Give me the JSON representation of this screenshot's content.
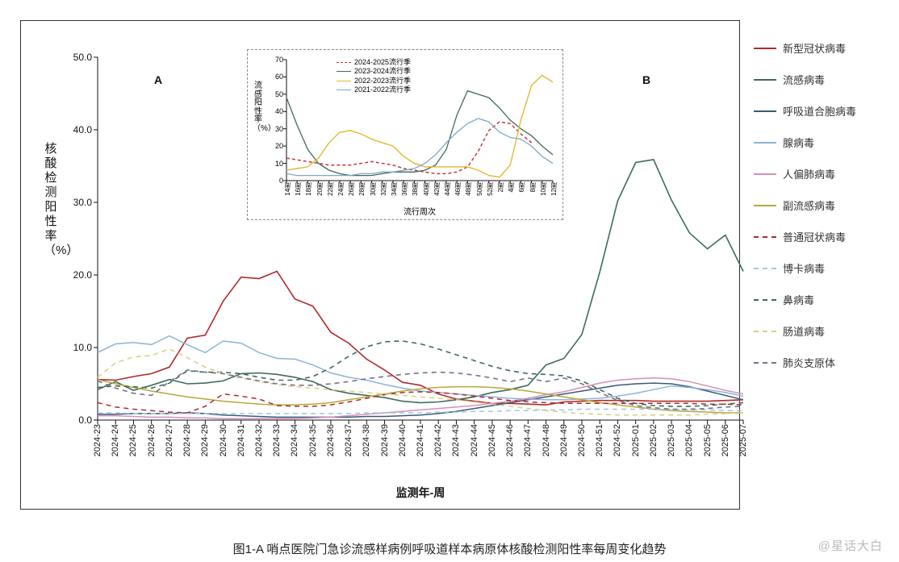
{
  "caption": "图1-A  哨点医院门急诊流感样病例呼吸道样本病原体核酸检测阳性率每周变化趋势",
  "watermark": "@星话大白",
  "markers": {
    "A": "A",
    "B": "B"
  },
  "chart": {
    "type": "line",
    "title": "",
    "ylabel": "核酸检测阳性率（%）",
    "xlabel": "监测年-周",
    "label_fontsize": 14,
    "tick_fontsize": 11,
    "background_color": "#ffffff",
    "axis_color": "#111111",
    "grid": false,
    "ylim": [
      0,
      50
    ],
    "ytick_step": 10,
    "ytick_labels": [
      "0.0",
      "10.0",
      "20.0",
      "30.0",
      "40.0",
      "50.0"
    ],
    "x_categories": [
      "2024-23",
      "2024-24",
      "2024-25",
      "2024-26",
      "2024-27",
      "2024-28",
      "2024-29",
      "2024-30",
      "2024-31",
      "2024-32",
      "2024-33",
      "2024-34",
      "2024-35",
      "2024-36",
      "2024-37",
      "2024-38",
      "2024-39",
      "2024-40",
      "2024-41",
      "2024-42",
      "2024-43",
      "2024-44",
      "2024-45",
      "2024-46",
      "2024-47",
      "2024-48",
      "2024-49",
      "2024-50",
      "2024-51",
      "2024-52",
      "2025-01",
      "2025-02",
      "2025-03",
      "2025-04",
      "2025-05",
      "2025-06",
      "2025-07"
    ],
    "series": [
      {
        "name": "新型冠状病毒",
        "color": "#b02a2a",
        "dash": "solid",
        "width": 1.6,
        "values": [
          5.6,
          5.5,
          6.0,
          6.4,
          7.3,
          11.3,
          11.7,
          16.4,
          19.7,
          19.5,
          20.5,
          16.7,
          15.7,
          12.1,
          10.6,
          8.4,
          6.9,
          5.2,
          4.8,
          3.6,
          2.9,
          2.6,
          2.3,
          2.3,
          2.2,
          2.1,
          2.5,
          2.6,
          2.7,
          2.7,
          2.7,
          2.6,
          2.6,
          2.6,
          2.6,
          2.7,
          2.8
        ]
      },
      {
        "name": "流感病毒",
        "color": "#3f6b5c",
        "dash": "solid",
        "width": 1.6,
        "values": [
          4.2,
          5.3,
          4.1,
          4.8,
          5.6,
          5.0,
          5.1,
          5.4,
          6.4,
          6.5,
          6.3,
          5.9,
          5.3,
          4.2,
          3.7,
          3.4,
          3.1,
          2.6,
          2.4,
          2.5,
          2.8,
          3.2,
          3.8,
          4.2,
          4.8,
          7.6,
          8.5,
          11.8,
          20.4,
          30.2,
          35.5,
          35.9,
          30.3,
          25.8,
          23.6,
          25.5,
          20.5
        ]
      },
      {
        "name": "呼吸道合胞病毒",
        "color": "#3a5a78",
        "dash": "solid",
        "width": 1.5,
        "values": [
          0.8,
          0.8,
          0.9,
          0.9,
          0.9,
          1.0,
          0.9,
          0.7,
          0.6,
          0.5,
          0.4,
          0.4,
          0.4,
          0.4,
          0.4,
          0.5,
          0.5,
          0.6,
          0.7,
          0.9,
          1.2,
          1.6,
          2.0,
          2.4,
          2.8,
          3.2,
          3.6,
          4.0,
          4.4,
          4.8,
          5.0,
          5.1,
          5.0,
          4.6,
          4.0,
          3.4,
          2.8
        ]
      },
      {
        "name": "腺病毒",
        "color": "#8bb4d9",
        "dash": "solid",
        "width": 1.5,
        "values": [
          9.3,
          10.5,
          10.7,
          10.4,
          11.6,
          10.4,
          9.3,
          10.9,
          10.6,
          9.3,
          8.5,
          8.4,
          7.6,
          6.5,
          5.9,
          5.5,
          4.9,
          4.4,
          4.0,
          3.8,
          3.6,
          3.4,
          3.2,
          3.0,
          2.9,
          2.8,
          2.8,
          2.9,
          3.0,
          3.3,
          3.7,
          4.2,
          4.7,
          4.5,
          4.2,
          3.8,
          3.3
        ]
      },
      {
        "name": "人偏肺病毒",
        "color": "#d490b8",
        "dash": "solid",
        "width": 1.5,
        "values": [
          0.6,
          0.6,
          0.5,
          0.4,
          0.4,
          0.3,
          0.3,
          0.2,
          0.2,
          0.2,
          0.2,
          0.2,
          0.3,
          0.4,
          0.6,
          0.8,
          1.0,
          1.2,
          1.4,
          1.6,
          1.8,
          2.0,
          2.3,
          2.6,
          3.0,
          3.5,
          3.9,
          4.5,
          5.1,
          5.5,
          5.7,
          5.8,
          5.7,
          5.3,
          4.7,
          4.1,
          3.6
        ]
      },
      {
        "name": "副流感病毒",
        "color": "#b5a83c",
        "dash": "solid",
        "width": 1.5,
        "values": [
          5.6,
          5.0,
          4.5,
          4.0,
          3.6,
          3.2,
          2.9,
          2.6,
          2.4,
          2.2,
          2.1,
          2.1,
          2.2,
          2.4,
          2.8,
          3.2,
          3.6,
          4.0,
          4.3,
          4.5,
          4.6,
          4.6,
          4.5,
          4.3,
          4.0,
          3.6,
          3.2,
          2.8,
          2.4,
          2.1,
          1.8,
          1.5,
          1.3,
          1.2,
          1.1,
          1.0,
          1.0
        ]
      },
      {
        "name": "普通冠状病毒",
        "color": "#b02a2a",
        "dash": "dashed",
        "width": 1.5,
        "values": [
          2.4,
          1.8,
          1.5,
          1.3,
          1.1,
          1.0,
          1.9,
          3.6,
          3.3,
          2.9,
          2.0,
          1.9,
          1.9,
          2.1,
          2.5,
          3.0,
          3.5,
          3.8,
          3.9,
          3.8,
          3.6,
          3.3,
          3.0,
          2.7,
          2.5,
          2.4,
          2.3,
          2.3,
          2.3,
          2.3,
          2.3,
          2.3,
          2.3,
          2.3,
          2.2,
          2.2,
          2.1
        ]
      },
      {
        "name": "博卡病毒",
        "color": "#9fc5e8",
        "dash": "dashed",
        "width": 1.5,
        "values": [
          1.0,
          1.0,
          0.9,
          0.9,
          0.9,
          0.9,
          0.9,
          0.9,
          0.9,
          0.9,
          0.9,
          0.9,
          0.9,
          0.9,
          0.9,
          1.0,
          1.0,
          1.0,
          1.0,
          1.1,
          1.1,
          1.2,
          1.2,
          1.3,
          1.3,
          1.4,
          1.4,
          1.5,
          1.5,
          1.5,
          1.5,
          1.5,
          1.5,
          1.4,
          1.4,
          1.3,
          1.3
        ]
      },
      {
        "name": "鼻病毒",
        "color": "#3f6b5c",
        "dash": "dashed",
        "width": 1.6,
        "values": [
          4.5,
          4.7,
          4.6,
          4.4,
          5.1,
          6.8,
          6.6,
          6.6,
          6.4,
          5.9,
          5.5,
          5.5,
          6.0,
          7.2,
          8.8,
          10.1,
          10.8,
          10.9,
          10.5,
          9.8,
          9.0,
          8.2,
          7.4,
          6.8,
          6.4,
          6.3,
          6.1,
          5.4,
          4.2,
          3.0,
          2.3,
          2.0,
          1.9,
          1.9,
          2.0,
          2.2,
          2.4
        ]
      },
      {
        "name": "肠道病毒",
        "color": "#d7cf84",
        "dash": "dashed",
        "width": 1.5,
        "values": [
          5.9,
          7.9,
          8.7,
          8.9,
          9.8,
          8.6,
          7.3,
          6.4,
          5.8,
          5.3,
          4.9,
          4.6,
          4.4,
          4.2,
          4.0,
          3.8,
          3.6,
          3.4,
          3.2,
          3.0,
          2.8,
          2.5,
          2.2,
          1.9,
          1.6,
          1.3,
          1.1,
          0.9,
          0.8,
          0.7,
          0.7,
          0.7,
          0.7,
          0.7,
          0.8,
          0.9,
          1.0
        ]
      },
      {
        "name": "肺炎支原体",
        "color": "#7a6f8f",
        "dash": "dashed",
        "width": 1.6,
        "values": [
          5.4,
          4.4,
          3.7,
          3.4,
          5.3,
          6.9,
          6.6,
          6.4,
          5.9,
          5.4,
          5.0,
          4.8,
          4.8,
          5.0,
          5.3,
          5.7,
          6.0,
          6.3,
          6.5,
          6.6,
          6.5,
          6.2,
          5.8,
          5.3,
          5.8,
          5.3,
          5.8,
          5.0,
          3.8,
          2.7,
          2.0,
          1.7,
          1.5,
          1.5,
          1.6,
          1.8,
          1.9
        ]
      }
    ]
  },
  "inset": {
    "type": "line",
    "ylabel": "流感阳性率（%）",
    "xlabel": "流行周次",
    "ylim": [
      0,
      70
    ],
    "ytick_step": 10,
    "ytick_labels": [
      "0",
      "10",
      "20",
      "30",
      "40",
      "50",
      "60",
      "70"
    ],
    "x_categories": [
      "14周",
      "16周",
      "18周",
      "20周",
      "22周",
      "24周",
      "26周",
      "28周",
      "30周",
      "32周",
      "34周",
      "36周",
      "38周",
      "40周",
      "42周",
      "44周",
      "46周",
      "48周",
      "50周",
      "52周",
      "2周",
      "4周",
      "6周",
      "8周",
      "10周",
      "12周"
    ],
    "series": [
      {
        "name": "2024-2025流行季",
        "color": "#c43a3a",
        "dash": "dashed",
        "width": 1.5,
        "values": [
          13,
          12,
          11,
          10,
          9,
          9,
          9,
          10,
          11,
          10,
          9,
          7,
          6,
          5,
          4,
          4,
          5,
          8,
          17,
          29,
          34,
          33,
          27,
          22,
          null,
          null
        ]
      },
      {
        "name": "2023-2024流行季",
        "color": "#3f6b5c",
        "dash": "solid",
        "width": 1.3,
        "values": [
          48,
          32,
          18,
          10,
          6,
          4,
          3,
          3,
          3,
          4,
          5,
          5,
          5,
          6,
          9,
          18,
          38,
          52,
          50,
          48,
          42,
          35,
          30,
          26,
          20,
          15
        ]
      },
      {
        "name": "2022-2023流行季",
        "color": "#e3b92e",
        "dash": "solid",
        "width": 1.4,
        "values": [
          6,
          7,
          8,
          13,
          22,
          28,
          29,
          27,
          24,
          22,
          20,
          14,
          10,
          8,
          8,
          8,
          8,
          8,
          6,
          3,
          2,
          9,
          35,
          55,
          61,
          57
        ]
      },
      {
        "name": "2021-2022流行季",
        "color": "#7fa6c9",
        "dash": "solid",
        "width": 1.3,
        "values": [
          4,
          3,
          3,
          3,
          3,
          3,
          3,
          4,
          4,
          5,
          5,
          6,
          7,
          10,
          15,
          22,
          28,
          33,
          36,
          34,
          28,
          25,
          24,
          20,
          14,
          10
        ]
      }
    ]
  }
}
